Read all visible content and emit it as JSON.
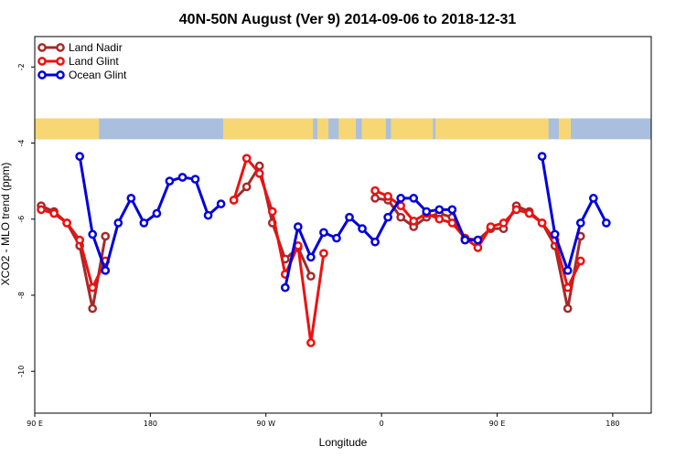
{
  "chart_data": {
    "type": "line",
    "title": "40N-50N August (Ver 9)   2014-09-06 to 2018-12-31",
    "xlabel": "Longitude",
    "ylabel": "XCO2 - MLO trend (ppm)",
    "xlim": [
      0,
      720
    ],
    "ylim": [
      -11.1,
      -1.2
    ],
    "x_ticks": [
      {
        "value": 0,
        "label": "90 E"
      },
      {
        "value": 135,
        "label": "180"
      },
      {
        "value": 270,
        "label": "90 W"
      },
      {
        "value": 405,
        "label": "0"
      },
      {
        "value": 540,
        "label": "90 E"
      },
      {
        "value": 675,
        "label": "180"
      }
    ],
    "y_ticks": [
      {
        "value": -2,
        "label": "-2"
      },
      {
        "value": -4,
        "label": "-4"
      },
      {
        "value": -6,
        "label": "-6"
      },
      {
        "value": -8,
        "label": "-8"
      },
      {
        "value": -10,
        "label": "-10"
      }
    ],
    "map_strip": {
      "y_top": -3.35,
      "y_bottom": -3.9,
      "land_color": "#f7d774",
      "ocean_color": "#a9bfdd"
    },
    "legend": {
      "position": "top-left"
    },
    "series": [
      {
        "name": "Land Nadir",
        "color": "#a52a2a",
        "points": [
          [
            7.5,
            -5.65
          ],
          [
            22.5,
            -5.8
          ],
          [
            37.5,
            -6.1
          ],
          [
            52.5,
            -6.7
          ],
          [
            67.5,
            -8.35
          ],
          [
            82.5,
            -6.45
          ],
          [
            232.5,
            -5.5
          ],
          [
            247.5,
            -5.15
          ],
          [
            262.5,
            -4.6
          ],
          [
            277.5,
            -6.1
          ],
          [
            292.5,
            -7.05
          ],
          [
            307.5,
            -6.75
          ],
          [
            322.5,
            -7.5
          ],
          [
            397.5,
            -5.45
          ],
          [
            412.5,
            -5.5
          ],
          [
            427.5,
            -5.95
          ],
          [
            442.5,
            -6.2
          ],
          [
            457.5,
            -5.95
          ],
          [
            472.5,
            -5.85
          ],
          [
            487.5,
            -5.95
          ],
          [
            502.5,
            -6.5
          ],
          [
            517.5,
            -6.55
          ],
          [
            532.5,
            -6.25
          ],
          [
            547.5,
            -6.25
          ],
          [
            562.5,
            -5.65
          ],
          [
            577.5,
            -5.8
          ],
          [
            592.5,
            -6.1
          ],
          [
            607.5,
            -6.7
          ],
          [
            622.5,
            -8.35
          ],
          [
            637.5,
            -6.45
          ]
        ]
      },
      {
        "name": "Land Glint",
        "color": "#ee1111",
        "points": [
          [
            7.5,
            -5.75
          ],
          [
            22.5,
            -5.85
          ],
          [
            37.5,
            -6.1
          ],
          [
            52.5,
            -6.55
          ],
          [
            67.5,
            -7.8
          ],
          [
            82.5,
            -7.1
          ],
          [
            232.5,
            -5.5
          ],
          [
            247.5,
            -4.4
          ],
          [
            262.5,
            -4.8
          ],
          [
            277.5,
            -5.8
          ],
          [
            292.5,
            -7.45
          ],
          [
            307.5,
            -6.7
          ],
          [
            322.5,
            -9.25
          ],
          [
            337.5,
            -6.9
          ],
          [
            397.5,
            -5.25
          ],
          [
            412.5,
            -5.4
          ],
          [
            427.5,
            -5.65
          ],
          [
            442.5,
            -6.05
          ],
          [
            457.5,
            -5.85
          ],
          [
            472.5,
            -6.0
          ],
          [
            487.5,
            -6.1
          ],
          [
            502.5,
            -6.5
          ],
          [
            517.5,
            -6.75
          ],
          [
            532.5,
            -6.2
          ],
          [
            547.5,
            -6.1
          ],
          [
            562.5,
            -5.75
          ],
          [
            577.5,
            -5.85
          ],
          [
            592.5,
            -6.1
          ],
          [
            607.5,
            -6.55
          ],
          [
            622.5,
            -7.8
          ],
          [
            637.5,
            -7.1
          ]
        ]
      },
      {
        "name": "Ocean Glint",
        "color": "#0000dd",
        "points": [
          [
            52.5,
            -4.35
          ],
          [
            67.5,
            -6.4
          ],
          [
            82.5,
            -7.35
          ],
          [
            97.5,
            -6.1
          ],
          [
            112.5,
            -5.45
          ],
          [
            127.5,
            -6.1
          ],
          [
            142.5,
            -5.85
          ],
          [
            157.5,
            -5.0
          ],
          [
            172.5,
            -4.9
          ],
          [
            187.5,
            -4.95
          ],
          [
            202.5,
            -5.9
          ],
          [
            217.5,
            -5.6
          ],
          [
            292.5,
            -7.8
          ],
          [
            307.5,
            -6.2
          ],
          [
            322.5,
            -7.0
          ],
          [
            337.5,
            -6.35
          ],
          [
            352.5,
            -6.5
          ],
          [
            367.5,
            -5.95
          ],
          [
            382.5,
            -6.25
          ],
          [
            397.5,
            -6.6
          ],
          [
            412.5,
            -5.95
          ],
          [
            427.5,
            -5.45
          ],
          [
            442.5,
            -5.45
          ],
          [
            457.5,
            -5.8
          ],
          [
            472.5,
            -5.75
          ],
          [
            487.5,
            -5.75
          ],
          [
            502.5,
            -6.55
          ],
          [
            517.5,
            -6.55
          ],
          [
            592.5,
            -4.35
          ],
          [
            607.5,
            -6.4
          ],
          [
            622.5,
            -7.35
          ],
          [
            637.5,
            -6.1
          ],
          [
            652.5,
            -5.45
          ],
          [
            667.5,
            -6.1
          ]
        ]
      }
    ]
  }
}
